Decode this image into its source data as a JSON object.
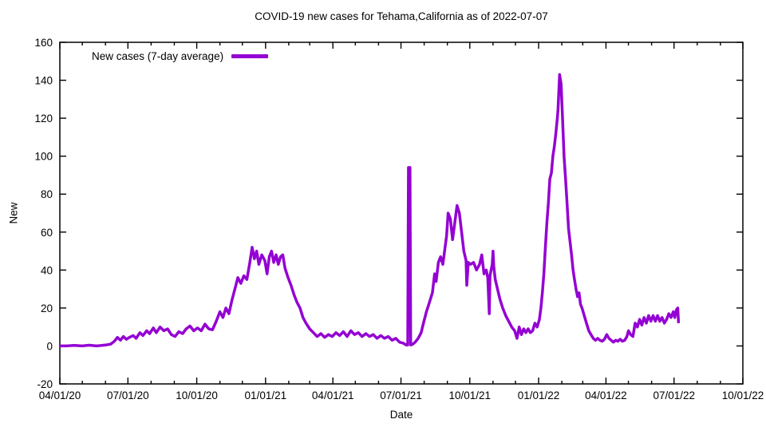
{
  "title": "COVID-19 new cases for Tehama,California as of 2022-07-07",
  "legend": {
    "label": "New cases (7-day average)"
  },
  "axes": {
    "x_label": "Date",
    "y_label": "New",
    "x_tick_labels": [
      "04/01/20",
      "07/01/20",
      "10/01/20",
      "01/01/21",
      "04/01/21",
      "07/01/21",
      "10/01/21",
      "01/01/22",
      "04/01/22",
      "07/01/22",
      "10/01/22"
    ],
    "y_tick_labels": [
      "-20",
      "0",
      "20",
      "40",
      "60",
      "80",
      "100",
      "120",
      "140",
      "160"
    ]
  },
  "colors": {
    "line": "#9400D3",
    "axis": "#000000",
    "background": "#ffffff"
  },
  "chart_data": {
    "type": "line",
    "title": "COVID-19 new cases for Tehama,California as of 2022-07-07",
    "xlabel": "Date",
    "ylabel": "New",
    "x_range": [
      "2020-04-01",
      "2022-10-01"
    ],
    "ylim": [
      -20,
      160
    ],
    "y_tick_step": 20,
    "x_major_tick": "quarterly (mm/01/yy)",
    "x_minor_tick": "monthly",
    "grid": false,
    "legend_position": "top-left-inside",
    "series": [
      {
        "name": "New cases (7-day average)",
        "color": "#9400D3",
        "points": [
          [
            "2020-04-01",
            0
          ],
          [
            "2020-04-10",
            0
          ],
          [
            "2020-04-20",
            0.3
          ],
          [
            "2020-05-01",
            0
          ],
          [
            "2020-05-10",
            0.4
          ],
          [
            "2020-05-20",
            0
          ],
          [
            "2020-06-01",
            0.5
          ],
          [
            "2020-06-08",
            1
          ],
          [
            "2020-06-13",
            2.5
          ],
          [
            "2020-06-17",
            4.5
          ],
          [
            "2020-06-21",
            3
          ],
          [
            "2020-06-25",
            5
          ],
          [
            "2020-06-29",
            3.5
          ],
          [
            "2020-07-03",
            4.5
          ],
          [
            "2020-07-08",
            5.5
          ],
          [
            "2020-07-12",
            4
          ],
          [
            "2020-07-17",
            7
          ],
          [
            "2020-07-21",
            5.5
          ],
          [
            "2020-07-26",
            8
          ],
          [
            "2020-07-30",
            6.5
          ],
          [
            "2020-08-04",
            9.5
          ],
          [
            "2020-08-08",
            7
          ],
          [
            "2020-08-13",
            10
          ],
          [
            "2020-08-18",
            8
          ],
          [
            "2020-08-23",
            9
          ],
          [
            "2020-08-28",
            6
          ],
          [
            "2020-09-02",
            5
          ],
          [
            "2020-09-07",
            7.5
          ],
          [
            "2020-09-12",
            6.5
          ],
          [
            "2020-09-17",
            9
          ],
          [
            "2020-09-22",
            10.5
          ],
          [
            "2020-09-27",
            8
          ],
          [
            "2020-10-02",
            9.5
          ],
          [
            "2020-10-07",
            8
          ],
          [
            "2020-10-12",
            11.5
          ],
          [
            "2020-10-17",
            9
          ],
          [
            "2020-10-22",
            8.5
          ],
          [
            "2020-10-27",
            13
          ],
          [
            "2020-11-01",
            18
          ],
          [
            "2020-11-05",
            15
          ],
          [
            "2020-11-09",
            20
          ],
          [
            "2020-11-13",
            17
          ],
          [
            "2020-11-17",
            24
          ],
          [
            "2020-11-21",
            30
          ],
          [
            "2020-11-25",
            36
          ],
          [
            "2020-11-29",
            33
          ],
          [
            "2020-12-03",
            37
          ],
          [
            "2020-12-07",
            35
          ],
          [
            "2020-12-11",
            44
          ],
          [
            "2020-12-14",
            52
          ],
          [
            "2020-12-17",
            46
          ],
          [
            "2020-12-20",
            50
          ],
          [
            "2020-12-23",
            43
          ],
          [
            "2020-12-27",
            48
          ],
          [
            "2020-12-31",
            45
          ],
          [
            "2021-01-03",
            38
          ],
          [
            "2021-01-06",
            47
          ],
          [
            "2021-01-09",
            50
          ],
          [
            "2021-01-12",
            44
          ],
          [
            "2021-01-15",
            48
          ],
          [
            "2021-01-18",
            43
          ],
          [
            "2021-01-21",
            47
          ],
          [
            "2021-01-24",
            48
          ],
          [
            "2021-01-27",
            41
          ],
          [
            "2021-01-31",
            36
          ],
          [
            "2021-02-04",
            32
          ],
          [
            "2021-02-08",
            27
          ],
          [
            "2021-02-12",
            23
          ],
          [
            "2021-02-16",
            20
          ],
          [
            "2021-02-20",
            15
          ],
          [
            "2021-02-24",
            12
          ],
          [
            "2021-03-01",
            9
          ],
          [
            "2021-03-06",
            7
          ],
          [
            "2021-03-11",
            5
          ],
          [
            "2021-03-16",
            6.5
          ],
          [
            "2021-03-21",
            4.5
          ],
          [
            "2021-03-26",
            6
          ],
          [
            "2021-03-31",
            5
          ],
          [
            "2021-04-05",
            7
          ],
          [
            "2021-04-10",
            5.5
          ],
          [
            "2021-04-15",
            7.5
          ],
          [
            "2021-04-20",
            5
          ],
          [
            "2021-04-25",
            8
          ],
          [
            "2021-04-30",
            6
          ],
          [
            "2021-05-05",
            7
          ],
          [
            "2021-05-10",
            5
          ],
          [
            "2021-05-15",
            6.5
          ],
          [
            "2021-05-20",
            5
          ],
          [
            "2021-05-25",
            6
          ],
          [
            "2021-05-30",
            4
          ],
          [
            "2021-06-04",
            5.5
          ],
          [
            "2021-06-09",
            4
          ],
          [
            "2021-06-14",
            5
          ],
          [
            "2021-06-19",
            3
          ],
          [
            "2021-06-24",
            4
          ],
          [
            "2021-06-29",
            2
          ],
          [
            "2021-07-04",
            1.5
          ],
          [
            "2021-07-08",
            0.5
          ],
          [
            "2021-07-10",
            0.5
          ],
          [
            "2021-07-11",
            94
          ],
          [
            "2021-07-12",
            91
          ],
          [
            "2021-07-13",
            94
          ],
          [
            "2021-07-14",
            0.5
          ],
          [
            "2021-07-17",
            1
          ],
          [
            "2021-07-20",
            2
          ],
          [
            "2021-07-24",
            4
          ],
          [
            "2021-07-28",
            7
          ],
          [
            "2021-07-31",
            12
          ],
          [
            "2021-08-04",
            18
          ],
          [
            "2021-08-08",
            23
          ],
          [
            "2021-08-12",
            28
          ],
          [
            "2021-08-15",
            38
          ],
          [
            "2021-08-17",
            34
          ],
          [
            "2021-08-20",
            44
          ],
          [
            "2021-08-23",
            47
          ],
          [
            "2021-08-26",
            43
          ],
          [
            "2021-08-29",
            52
          ],
          [
            "2021-08-31",
            58
          ],
          [
            "2021-09-02",
            70
          ],
          [
            "2021-09-05",
            67
          ],
          [
            "2021-09-08",
            56
          ],
          [
            "2021-09-11",
            65
          ],
          [
            "2021-09-14",
            74
          ],
          [
            "2021-09-17",
            70
          ],
          [
            "2021-09-20",
            60
          ],
          [
            "2021-09-23",
            50
          ],
          [
            "2021-09-26",
            45
          ],
          [
            "2021-09-27",
            32
          ],
          [
            "2021-09-29",
            44
          ],
          [
            "2021-10-02",
            43
          ],
          [
            "2021-10-06",
            44
          ],
          [
            "2021-10-10",
            40
          ],
          [
            "2021-10-14",
            43
          ],
          [
            "2021-10-17",
            48
          ],
          [
            "2021-10-20",
            38
          ],
          [
            "2021-10-23",
            40
          ],
          [
            "2021-10-25",
            36
          ],
          [
            "2021-10-27",
            17
          ],
          [
            "2021-10-28",
            37
          ],
          [
            "2021-10-31",
            43
          ],
          [
            "2021-11-01",
            50
          ],
          [
            "2021-11-02",
            42
          ],
          [
            "2021-11-04",
            35
          ],
          [
            "2021-11-07",
            30
          ],
          [
            "2021-11-10",
            25
          ],
          [
            "2021-11-14",
            20
          ],
          [
            "2021-11-18",
            16
          ],
          [
            "2021-11-22",
            13
          ],
          [
            "2021-11-26",
            10
          ],
          [
            "2021-11-30",
            8
          ],
          [
            "2021-12-03",
            4
          ],
          [
            "2021-12-06",
            10
          ],
          [
            "2021-12-09",
            6
          ],
          [
            "2021-12-12",
            9
          ],
          [
            "2021-12-15",
            7
          ],
          [
            "2021-12-18",
            9
          ],
          [
            "2021-12-21",
            7
          ],
          [
            "2021-12-24",
            8
          ],
          [
            "2021-12-27",
            12
          ],
          [
            "2021-12-30",
            10
          ],
          [
            "2022-01-02",
            14
          ],
          [
            "2022-01-04",
            20
          ],
          [
            "2022-01-06",
            28
          ],
          [
            "2022-01-08",
            38
          ],
          [
            "2022-01-10",
            52
          ],
          [
            "2022-01-12",
            65
          ],
          [
            "2022-01-14",
            75
          ],
          [
            "2022-01-16",
            88
          ],
          [
            "2022-01-18",
            91
          ],
          [
            "2022-01-20",
            100
          ],
          [
            "2022-01-22",
            105
          ],
          [
            "2022-01-24",
            112
          ],
          [
            "2022-01-26",
            120
          ],
          [
            "2022-01-27",
            125
          ],
          [
            "2022-01-29",
            143
          ],
          [
            "2022-01-31",
            138
          ],
          [
            "2022-02-02",
            120
          ],
          [
            "2022-02-04",
            100
          ],
          [
            "2022-02-06",
            88
          ],
          [
            "2022-02-08",
            75
          ],
          [
            "2022-02-10",
            62
          ],
          [
            "2022-02-12",
            55
          ],
          [
            "2022-02-14",
            48
          ],
          [
            "2022-02-16",
            40
          ],
          [
            "2022-02-18",
            35
          ],
          [
            "2022-02-20",
            30
          ],
          [
            "2022-02-22",
            26
          ],
          [
            "2022-02-24",
            28
          ],
          [
            "2022-02-26",
            22
          ],
          [
            "2022-02-28",
            20
          ],
          [
            "2022-03-03",
            16
          ],
          [
            "2022-03-06",
            12
          ],
          [
            "2022-03-09",
            8
          ],
          [
            "2022-03-12",
            6
          ],
          [
            "2022-03-15",
            4
          ],
          [
            "2022-03-18",
            3
          ],
          [
            "2022-03-21",
            4
          ],
          [
            "2022-03-24",
            3
          ],
          [
            "2022-03-27",
            2.5
          ],
          [
            "2022-03-30",
            3.5
          ],
          [
            "2022-04-02",
            6
          ],
          [
            "2022-04-05",
            4
          ],
          [
            "2022-04-08",
            3
          ],
          [
            "2022-04-11",
            2
          ],
          [
            "2022-04-14",
            3
          ],
          [
            "2022-04-17",
            2.5
          ],
          [
            "2022-04-20",
            3.5
          ],
          [
            "2022-04-23",
            2.5
          ],
          [
            "2022-04-26",
            3
          ],
          [
            "2022-04-29",
            5
          ],
          [
            "2022-05-01",
            8
          ],
          [
            "2022-05-04",
            6
          ],
          [
            "2022-05-07",
            5
          ],
          [
            "2022-05-10",
            12
          ],
          [
            "2022-05-13",
            10
          ],
          [
            "2022-05-16",
            14
          ],
          [
            "2022-05-19",
            11
          ],
          [
            "2022-05-22",
            15
          ],
          [
            "2022-05-25",
            12
          ],
          [
            "2022-05-28",
            16
          ],
          [
            "2022-05-31",
            13
          ],
          [
            "2022-06-03",
            16
          ],
          [
            "2022-06-06",
            13
          ],
          [
            "2022-06-09",
            16
          ],
          [
            "2022-06-12",
            13
          ],
          [
            "2022-06-15",
            15
          ],
          [
            "2022-06-18",
            12
          ],
          [
            "2022-06-21",
            14
          ],
          [
            "2022-06-24",
            17
          ],
          [
            "2022-06-27",
            15
          ],
          [
            "2022-06-30",
            18
          ],
          [
            "2022-07-02",
            15
          ],
          [
            "2022-07-04",
            19
          ],
          [
            "2022-07-06",
            20
          ],
          [
            "2022-07-07",
            12
          ]
        ]
      }
    ]
  }
}
